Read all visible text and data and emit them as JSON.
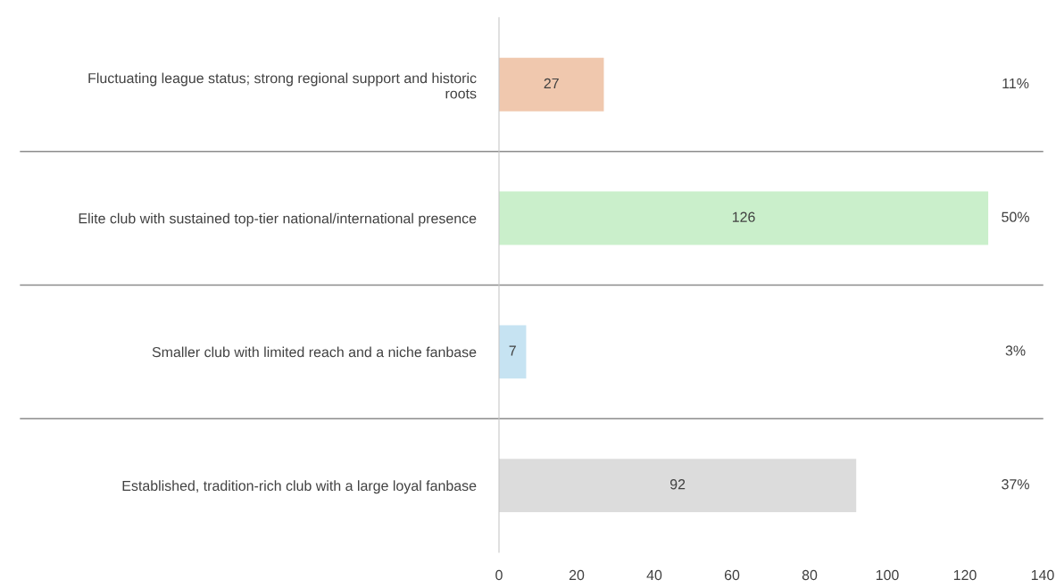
{
  "chart_data": {
    "type": "bar",
    "orientation": "horizontal",
    "categories": [
      "Fluctuating league status; strong regional support and historic\nroots",
      "Elite club with sustained top-tier national/international presence",
      "Smaller club with limited reach and a niche fanbase",
      "Established, tradition-rich club with a large loyal fanbase"
    ],
    "values": [
      27,
      126,
      7,
      92
    ],
    "colors": [
      "#f0c8ae",
      "#caefcb",
      "#c6e3f2",
      "#dcdcdc"
    ],
    "data_labels": true,
    "xlim": [
      0,
      140
    ],
    "xticks": [
      0,
      20,
      40,
      60,
      80,
      100,
      120,
      140
    ],
    "grid": false,
    "legend": false,
    "annotations": [
      "11%",
      "50%",
      "3%",
      "37%"
    ]
  }
}
